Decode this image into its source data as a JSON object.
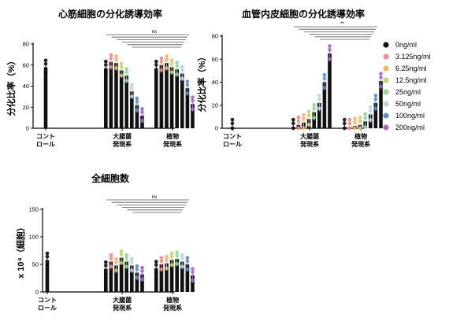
{
  "legend": [
    {
      "label": "0ng/ml",
      "color": "#111111"
    },
    {
      "label": "3.125ng/ml",
      "color": "#f28b82"
    },
    {
      "label": "6.25ng/ml",
      "color": "#f7b36b"
    },
    {
      "label": "12.5ng/ml",
      "color": "#c8d17a"
    },
    {
      "label": "25ng/ml",
      "color": "#93d79b"
    },
    {
      "label": "50ng/ml",
      "color": "#b8d4ec"
    },
    {
      "label": "100ng/ml",
      "color": "#5f8fc6"
    },
    {
      "label": "200ng/ml",
      "color": "#a76bbf"
    }
  ],
  "chart_data": [
    {
      "type": "bar",
      "title": "心筋細胞の分化誘導効率",
      "ylabel": "分化比率（%）",
      "ylim": [
        0,
        80
      ],
      "yticks": [
        0,
        20,
        40,
        60,
        80
      ],
      "categories": [
        "コント\nロール",
        "大腸菌\n発現系",
        "植物\n発現系"
      ],
      "series": [
        {
          "values": [
            58,
            57,
            57
          ]
        },
        {
          "values": [
            null,
            63,
            60
          ]
        },
        {
          "values": [
            null,
            62,
            62
          ]
        },
        {
          "values": [
            null,
            55,
            58
          ]
        },
        {
          "values": [
            null,
            50,
            56
          ]
        },
        {
          "values": [
            null,
            35,
            52
          ]
        },
        {
          "values": [
            null,
            22,
            38
          ]
        },
        {
          "values": [
            null,
            12,
            23
          ]
        }
      ],
      "significance": "ns"
    },
    {
      "type": "bar",
      "title": "血管内皮細胞の分化誘導効率",
      "ylabel": "分化比率（%）",
      "ylim": [
        0,
        80
      ],
      "yticks": [
        0,
        20,
        40,
        60,
        80
      ],
      "categories": [
        "コント\nロール",
        "大腸菌\n発現系",
        "植物\n発現系"
      ],
      "series": [
        {
          "values": [
            1,
            1,
            1
          ]
        },
        {
          "values": [
            null,
            3,
            1
          ]
        },
        {
          "values": [
            null,
            5,
            2
          ]
        },
        {
          "values": [
            null,
            8,
            3
          ]
        },
        {
          "values": [
            null,
            14,
            6
          ]
        },
        {
          "values": [
            null,
            22,
            12
          ]
        },
        {
          "values": [
            null,
            40,
            22
          ]
        },
        {
          "values": [
            null,
            65,
            41
          ]
        }
      ],
      "significance": "**"
    },
    {
      "type": "bar",
      "title": "全細胞数",
      "ylabel": "x 10⁴（細胞）",
      "ylim": [
        0,
        150
      ],
      "yticks": [
        0,
        50,
        100,
        150
      ],
      "categories": [
        "コント\nロール",
        "大腸菌\n発現系",
        "植物\n発現系"
      ],
      "series": [
        {
          "values": [
            58,
            42,
            43
          ]
        },
        {
          "values": [
            null,
            55,
            50
          ]
        },
        {
          "values": [
            null,
            48,
            52
          ]
        },
        {
          "values": [
            null,
            62,
            58
          ]
        },
        {
          "values": [
            null,
            55,
            60
          ]
        },
        {
          "values": [
            null,
            48,
            55
          ]
        },
        {
          "values": [
            null,
            35,
            50
          ]
        },
        {
          "values": [
            null,
            32,
            30
          ]
        }
      ],
      "significance": "ns"
    }
  ]
}
